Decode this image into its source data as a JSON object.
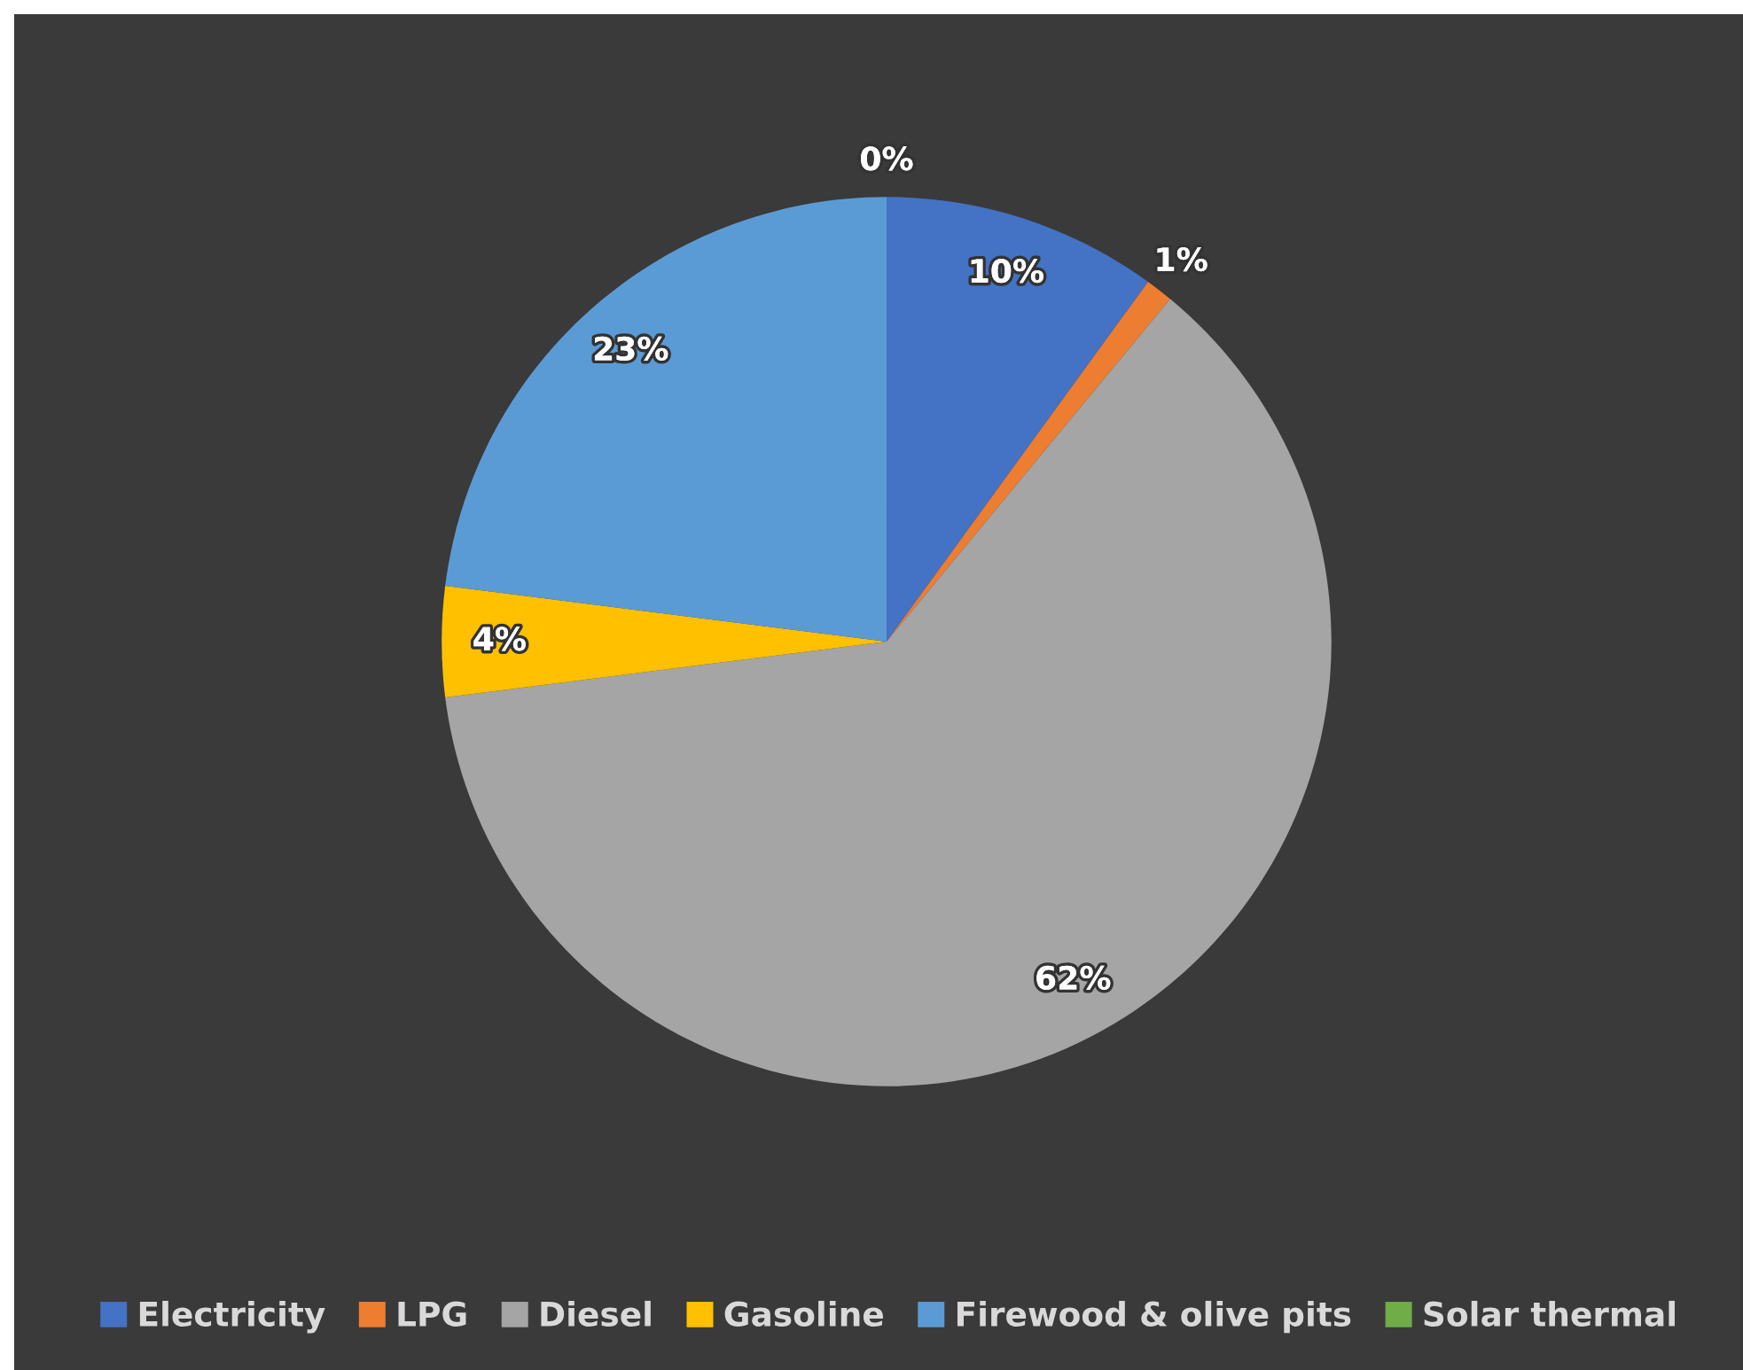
{
  "chart_data": {
    "type": "pie",
    "categories": [
      "Electricity",
      "LPG",
      "Diesel",
      "Gasoline",
      "Firewood & olive pits",
      "Solar thermal"
    ],
    "values": [
      10,
      1,
      62,
      4,
      23,
      0
    ],
    "colors": [
      "#4472c4",
      "#ed7d31",
      "#a5a5a5",
      "#ffc000",
      "#5b9bd5",
      "#70ad47"
    ],
    "value_labels": [
      "10%",
      "1%",
      "62%",
      "4%",
      "23%",
      "0%"
    ],
    "legend": "bottom"
  }
}
